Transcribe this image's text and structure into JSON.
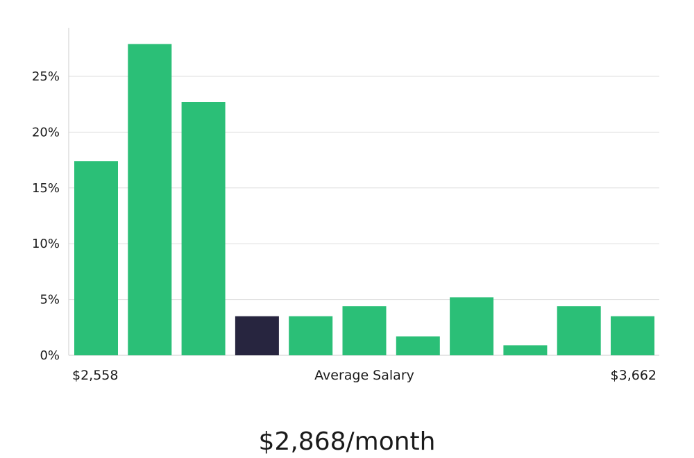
{
  "chart_data": {
    "type": "bar",
    "categories": [
      "1",
      "2",
      "3",
      "4",
      "5",
      "6",
      "7",
      "8",
      "9",
      "10",
      "11"
    ],
    "values": [
      17.4,
      27.9,
      22.7,
      3.5,
      3.5,
      4.4,
      1.7,
      5.2,
      0.9,
      4.4,
      3.5
    ],
    "highlight_index": 3,
    "ylim": [
      0,
      29
    ],
    "yticks": [
      0,
      5,
      10,
      15,
      20,
      25
    ],
    "ytick_suffix": "%",
    "grid": true,
    "xlabel": "Average Salary",
    "x_min_label": "$2,558",
    "x_max_label": "$3,662",
    "headline": "$2,868/month",
    "colors": {
      "bar": "#2bbf77",
      "highlight": "#27253f",
      "grid": "#dddddd",
      "axis": "#cccccc"
    }
  }
}
